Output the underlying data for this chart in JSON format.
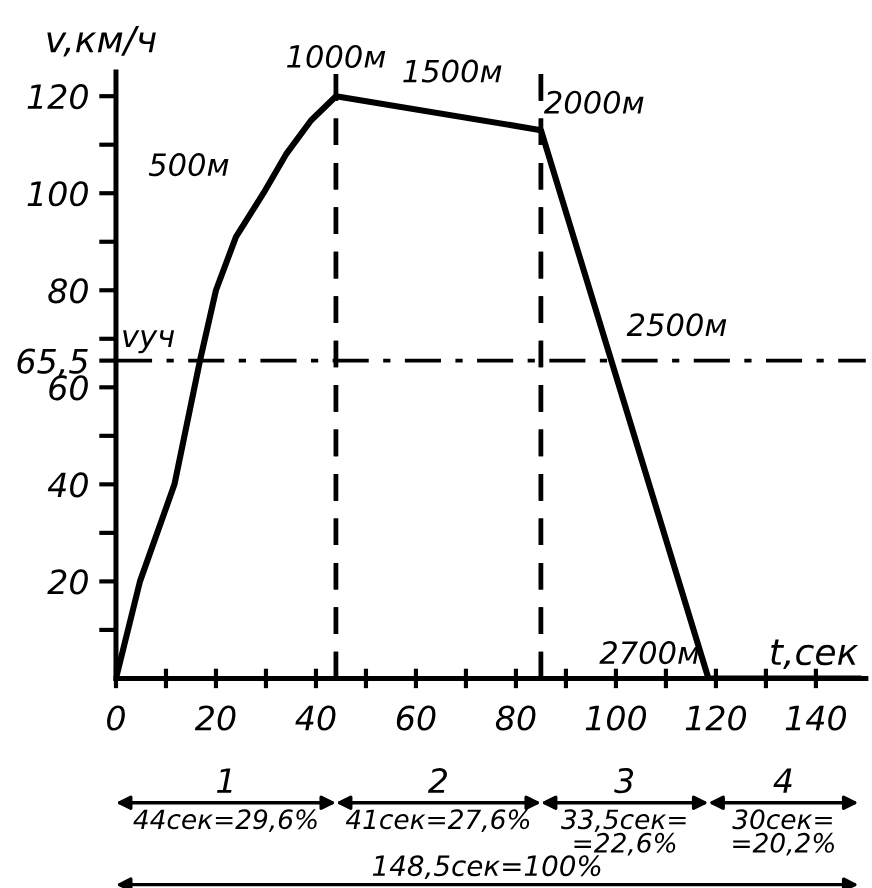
{
  "chart_data": {
    "type": "line",
    "xlabel": "t,сек",
    "ylabel": "v,км/ч",
    "x": [
      0,
      4.8,
      11.7,
      16.8,
      20,
      24,
      29.5,
      34,
      39,
      44,
      85,
      118.5,
      148.5
    ],
    "series": [
      {
        "color": "#000000",
        "values": [
          0,
          20,
          40,
          65.5,
          80,
          91,
          100,
          108,
          115,
          120,
          113,
          0,
          0
        ]
      }
    ],
    "xlim": [
      0,
      150
    ],
    "ylim": [
      0,
      125
    ],
    "xticks": [
      0,
      {
        "value": 10,
        "label": null
      },
      20,
      {
        "value": 30,
        "label": null
      },
      40,
      {
        "value": 50,
        "label": null
      },
      60,
      {
        "value": 70,
        "label": null
      },
      80,
      {
        "value": 90,
        "label": null
      },
      100,
      {
        "value": 110,
        "label": null
      },
      120,
      {
        "value": 130,
        "label": null
      },
      140
    ],
    "yticks": [
      {
        "value": 10,
        "label": null
      },
      20,
      {
        "value": 30,
        "label": null
      },
      40,
      {
        "value": 50,
        "label": null
      },
      60,
      {
        "value": 65.5,
        "label": "65,5"
      },
      {
        "value": 70,
        "label": null
      },
      80,
      {
        "value": 90,
        "label": null
      },
      100,
      {
        "value": 110,
        "label": null
      },
      120
    ],
    "ref_lines": [
      {
        "axis": "y",
        "value": 65.5,
        "label": "vуч",
        "line_style": "dashdot"
      },
      {
        "axis": "x",
        "value": 44,
        "label": null,
        "line_style": "dashed"
      },
      {
        "axis": "x",
        "value": 85,
        "label": null,
        "line_style": "dashed"
      }
    ],
    "annotations": [
      {
        "text": "500м",
        "x": 30.5,
        "y": 100
      },
      {
        "text": "1000м",
        "x": 44,
        "y": 120
      },
      {
        "text": "1500м",
        "x": 62.8,
        "y": 117
      },
      {
        "text": "2000м",
        "x": 79,
        "y": 114
      },
      {
        "text": "2500м",
        "x": 98.8,
        "y": 67
      },
      {
        "text": "2700м",
        "x": 118.5,
        "y": 0
      },
      "1",
      "2",
      "3",
      "4",
      "44сек=29,6%",
      "41сек=27,6%",
      "33,5сек=\n=22,6%",
      "30сек=\n=20,2%",
      "148,5сек=100%"
    ],
    "grid": false,
    "marker": "none",
    "line_style": "solid"
  }
}
